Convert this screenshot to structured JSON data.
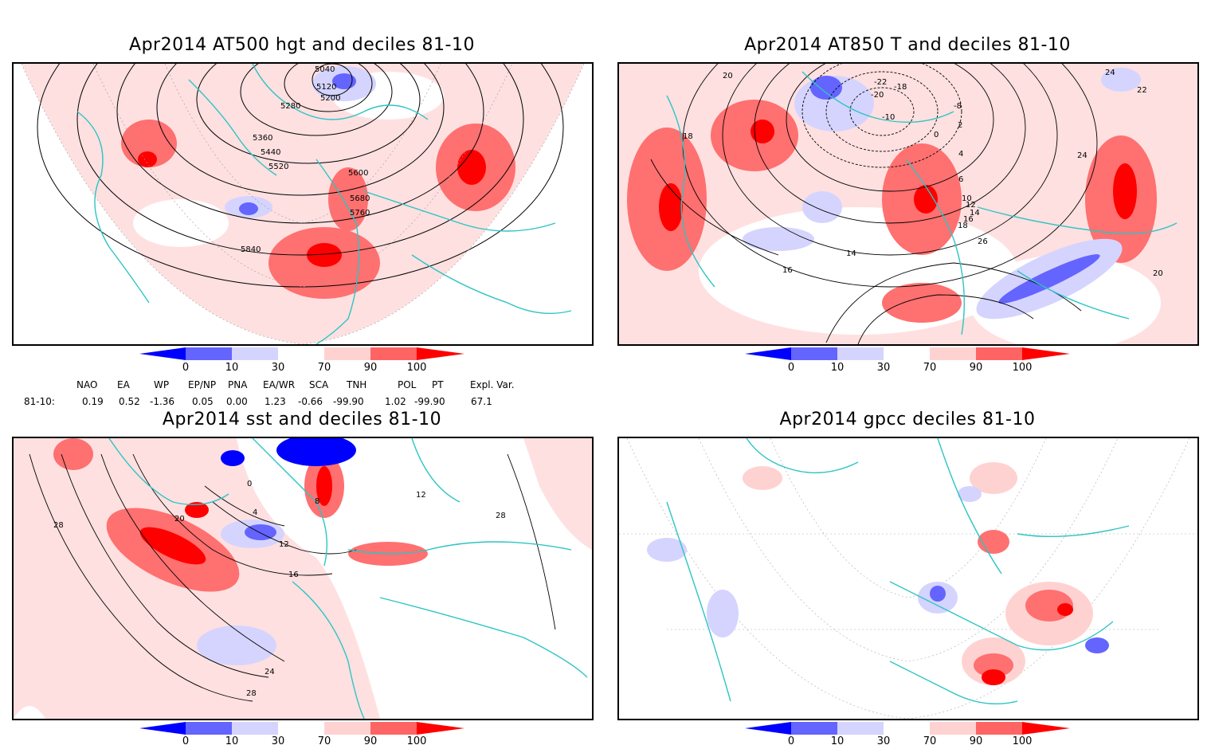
{
  "panels": [
    {
      "title": "Apr2014 AT500 hgt and deciles 81-10",
      "contour_labels": [
        "5040",
        "5120",
        "5200",
        "5280",
        "5360",
        "5440",
        "5520",
        "5600",
        "5680",
        "5760",
        "5840"
      ]
    },
    {
      "title": "Apr2014 AT850 T and deciles 81-10",
      "contour_labels": [
        "-22",
        "-18",
        "-20",
        "-8",
        "-10",
        "2",
        "0",
        "4",
        "6",
        "10",
        "12",
        "14",
        "16",
        "18",
        "20",
        "22",
        "24",
        "26",
        "16",
        "14",
        "18",
        "24",
        "20"
      ]
    },
    {
      "title": "Apr2014 sst and deciles 81-10",
      "contour_labels": [
        "0",
        "4",
        "8",
        "12",
        "16",
        "20",
        "24",
        "28",
        "28",
        "28",
        "12"
      ]
    },
    {
      "title": "Apr2014 gpcc deciles 81-10",
      "contour_labels": []
    }
  ],
  "colorbar": {
    "labels": [
      "0",
      "10",
      "30",
      "70",
      "90",
      "100"
    ],
    "colors": [
      "#0000ff",
      "#6464ff",
      "#d4d4ff",
      "#ffffff",
      "#ffd2d2",
      "#ff6464",
      "#ff0000"
    ]
  },
  "indices": {
    "headers": [
      "NAO",
      "EA",
      "WP",
      "EP/NP",
      "PNA",
      "EA/WR",
      "SCA",
      "TNH",
      "POL",
      "PT",
      "Expl. Var."
    ],
    "row_label": "81-10:",
    "values": [
      "0.19",
      "0.52",
      "-1.36",
      "0.05",
      "0.00",
      "1.23",
      "-0.66",
      "-99.90",
      "1.02",
      "-99.90",
      "67.1"
    ]
  }
}
